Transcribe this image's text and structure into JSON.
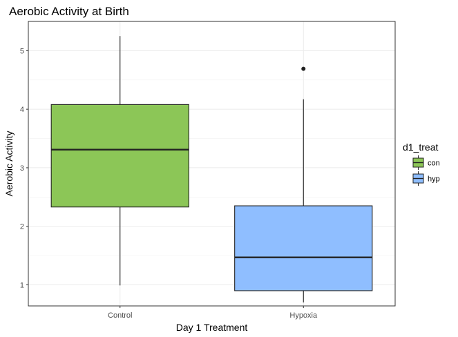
{
  "chart_data": {
    "type": "boxplot",
    "title": "Aerobic Activity at Birth",
    "xlabel": "Day 1 Treatment",
    "ylabel": "Aerobic Activity",
    "categories": [
      "Control",
      "Hypoxia"
    ],
    "ylim": [
      0.64,
      5.5
    ],
    "yticks": [
      1,
      2,
      3,
      4,
      5
    ],
    "grid": true,
    "legend": {
      "title": "d1_treat",
      "position": "right",
      "entries": [
        {
          "label": "con",
          "color": "#8cc657"
        },
        {
          "label": "hyp",
          "color": "#8fbeff"
        }
      ]
    },
    "boxes": [
      {
        "category": "Control",
        "group": "con",
        "color": "#8cc657",
        "whisker_low": 0.99,
        "q1": 2.33,
        "median": 3.31,
        "q3": 4.08,
        "whisker_high": 5.25,
        "outliers": []
      },
      {
        "category": "Hypoxia",
        "group": "hyp",
        "color": "#8fbeff",
        "whisker_low": 0.7,
        "q1": 0.9,
        "median": 1.47,
        "q3": 2.35,
        "whisker_high": 4.17,
        "outliers": [
          4.69
        ]
      }
    ]
  }
}
